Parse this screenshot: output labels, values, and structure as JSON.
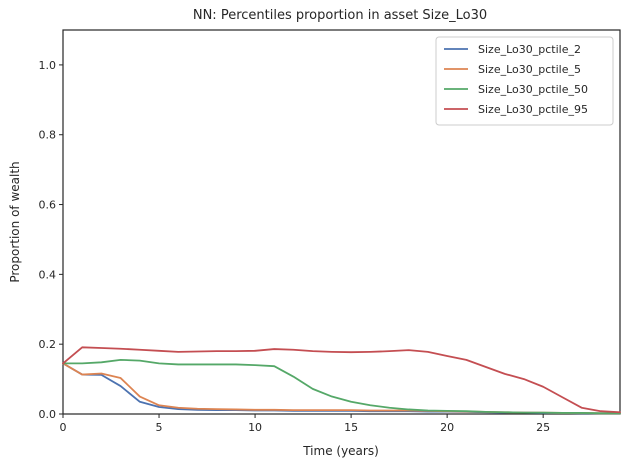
{
  "chart_data": {
    "type": "line",
    "title": "NN: Percentiles proportion in asset Size_Lo30",
    "xlabel": "Time (years)",
    "ylabel": "Proportion of wealth",
    "xlim": [
      0,
      29
    ],
    "ylim": [
      0,
      1.1
    ],
    "xticks": [
      0,
      5,
      10,
      15,
      20,
      25
    ],
    "xtick_labels": [
      "0",
      "5",
      "10",
      "15",
      "20",
      "25"
    ],
    "yticks": [
      0.0,
      0.2,
      0.4,
      0.6,
      0.8,
      1.0
    ],
    "ytick_labels": [
      "0.0",
      "0.2",
      "0.4",
      "0.6",
      "0.8",
      "1.0"
    ],
    "grid": false,
    "legend_position": "top-right",
    "x": [
      0,
      1,
      2,
      3,
      4,
      5,
      6,
      7,
      8,
      9,
      10,
      11,
      12,
      13,
      14,
      15,
      16,
      17,
      18,
      19,
      20,
      21,
      22,
      23,
      24,
      25,
      26,
      27,
      28,
      29
    ],
    "series": [
      {
        "name": "Size_Lo30_pctile_2",
        "color": "#4c72b0",
        "values": [
          0.145,
          0.113,
          0.112,
          0.08,
          0.035,
          0.02,
          0.014,
          0.012,
          0.011,
          0.011,
          0.01,
          0.01,
          0.009,
          0.009,
          0.009,
          0.009,
          0.008,
          0.008,
          0.008,
          0.007,
          0.007,
          0.006,
          0.005,
          0.004,
          0.004,
          0.003,
          0.003,
          0.002,
          0.002,
          0.002
        ]
      },
      {
        "name": "Size_Lo30_pctile_5",
        "color": "#dd8452",
        "values": [
          0.145,
          0.113,
          0.116,
          0.103,
          0.05,
          0.025,
          0.018,
          0.015,
          0.014,
          0.013,
          0.012,
          0.012,
          0.011,
          0.011,
          0.011,
          0.011,
          0.01,
          0.01,
          0.01,
          0.009,
          0.008,
          0.007,
          0.006,
          0.005,
          0.004,
          0.004,
          0.003,
          0.003,
          0.002,
          0.002
        ]
      },
      {
        "name": "Size_Lo30_pctile_50",
        "color": "#55a868",
        "values": [
          0.145,
          0.145,
          0.148,
          0.155,
          0.153,
          0.145,
          0.142,
          0.142,
          0.142,
          0.142,
          0.14,
          0.137,
          0.107,
          0.072,
          0.05,
          0.035,
          0.025,
          0.018,
          0.013,
          0.01,
          0.009,
          0.008,
          0.006,
          0.005,
          0.004,
          0.004,
          0.003,
          0.003,
          0.002,
          0.002
        ]
      },
      {
        "name": "Size_Lo30_pctile_95",
        "color": "#c44e52",
        "values": [
          0.145,
          0.191,
          0.189,
          0.187,
          0.184,
          0.181,
          0.178,
          0.179,
          0.18,
          0.18,
          0.181,
          0.186,
          0.184,
          0.18,
          0.178,
          0.177,
          0.178,
          0.18,
          0.183,
          0.178,
          0.166,
          0.155,
          0.135,
          0.115,
          0.1,
          0.078,
          0.048,
          0.018,
          0.008,
          0.005
        ]
      }
    ]
  }
}
